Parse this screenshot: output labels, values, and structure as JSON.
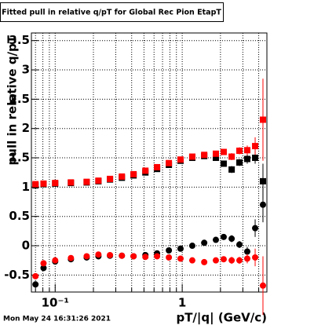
{
  "chart_data": {
    "type": "scatter",
    "title": "Fitted pull in relative q/pT for Global Rec Pion EtapT",
    "y_label": "pull in relative q/pT",
    "x_label": "pT/|q| (GeV/c)",
    "footer": "Mon May 24 16:31:26 2021",
    "log_x": true,
    "grid": true,
    "xlim": [
      0.065,
      4.64
    ],
    "ylim": [
      -0.79,
      3.63
    ],
    "xticks": [
      {
        "value": 0.1,
        "label": "10⁻¹"
      },
      1
    ],
    "xminorticks": [
      0.07,
      0.08,
      0.09,
      0.2,
      0.3,
      0.4,
      0.5,
      0.6,
      0.7,
      0.8,
      0.9,
      2,
      3,
      4
    ],
    "yticks": [
      -0.5,
      0,
      0.5,
      1,
      1.5,
      2,
      2.5,
      3,
      3.5
    ],
    "x": [
      0.07,
      0.081,
      0.1,
      0.133,
      0.177,
      0.219,
      0.27,
      0.335,
      0.414,
      0.513,
      0.634,
      0.785,
      0.97,
      1.2,
      1.49,
      1.84,
      2.12,
      2.45,
      2.82,
      3.25,
      3.75,
      4.32
    ],
    "series": [
      {
        "marker": "square",
        "color": "#000000",
        "values": [
          1.03,
          1.05,
          1.06,
          1.07,
          1.08,
          1.1,
          1.13,
          1.16,
          1.2,
          1.25,
          1.31,
          1.38,
          1.45,
          1.5,
          1.53,
          1.5,
          1.4,
          1.3,
          1.42,
          1.48,
          1.5,
          1.1
        ],
        "errors": [
          0.03,
          0.02,
          0.02,
          0.02,
          0.02,
          0.02,
          0.02,
          0.02,
          0.02,
          0.02,
          0.02,
          0.02,
          0.02,
          0.02,
          0.03,
          0.04,
          0.05,
          0.06,
          0.06,
          0.08,
          0.1,
          0.3
        ]
      },
      {
        "marker": "square",
        "color": "#ff0000",
        "values": [
          1.05,
          1.06,
          1.07,
          1.08,
          1.09,
          1.11,
          1.14,
          1.18,
          1.22,
          1.28,
          1.34,
          1.41,
          1.47,
          1.52,
          1.55,
          1.57,
          1.6,
          1.52,
          1.62,
          1.63,
          1.7,
          2.15
        ],
        "errors": [
          0.03,
          0.02,
          0.02,
          0.02,
          0.02,
          0.02,
          0.02,
          0.02,
          0.02,
          0.02,
          0.02,
          0.02,
          0.02,
          0.02,
          0.03,
          0.04,
          0.05,
          0.06,
          0.06,
          0.08,
          0.15,
          0.7
        ]
      },
      {
        "marker": "circle",
        "color": "#000000",
        "values": [
          -0.66,
          -0.38,
          -0.27,
          -0.23,
          -0.2,
          -0.18,
          -0.17,
          -0.17,
          -0.18,
          -0.16,
          -0.13,
          -0.08,
          -0.05,
          0.0,
          0.05,
          0.1,
          0.15,
          0.12,
          0.02,
          -0.1,
          0.3,
          0.7
        ],
        "errors": [
          0.03,
          0.02,
          0.02,
          0.02,
          0.02,
          0.02,
          0.02,
          0.02,
          0.02,
          0.02,
          0.02,
          0.02,
          0.02,
          0.02,
          0.03,
          0.04,
          0.05,
          0.06,
          0.06,
          0.08,
          0.15,
          0.3
        ]
      },
      {
        "marker": "circle",
        "color": "#ff0000",
        "values": [
          -0.52,
          -0.3,
          -0.25,
          -0.21,
          -0.18,
          -0.15,
          -0.16,
          -0.17,
          -0.18,
          -0.19,
          -0.18,
          -0.2,
          -0.22,
          -0.25,
          -0.28,
          -0.25,
          -0.23,
          -0.25,
          -0.25,
          -0.22,
          -0.2,
          -0.68
        ],
        "errors": [
          0.03,
          0.02,
          0.02,
          0.02,
          0.02,
          0.02,
          0.02,
          0.02,
          0.02,
          0.02,
          0.02,
          0.02,
          0.02,
          0.02,
          0.03,
          0.04,
          0.05,
          0.06,
          0.06,
          0.08,
          0.15,
          0.5
        ]
      }
    ]
  }
}
